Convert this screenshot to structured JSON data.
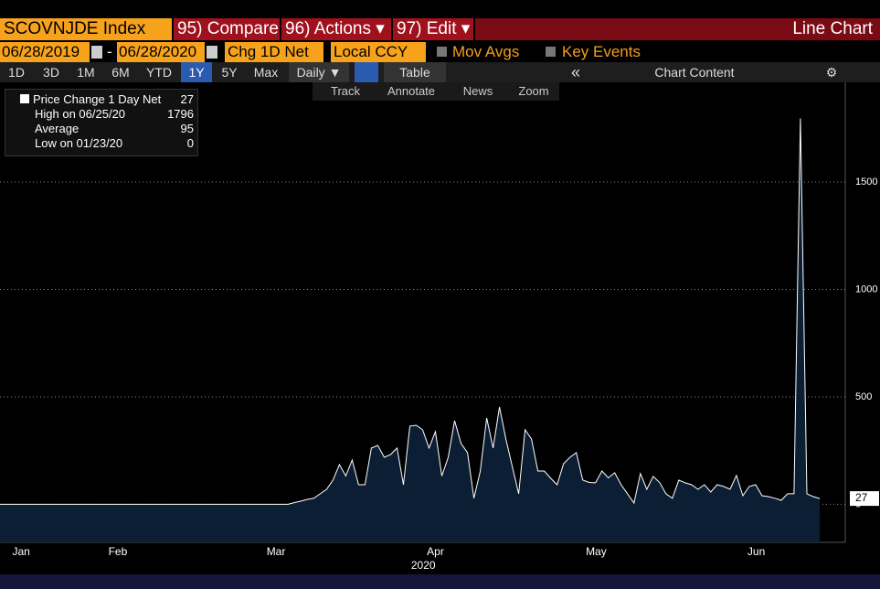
{
  "toolbar": {
    "security": "SCOVNJDE Index",
    "buttons": [
      "95) Compare",
      "96) Actions ▾",
      "97) Edit ▾"
    ],
    "view": "Line Chart"
  },
  "controls": {
    "start": "06/28/2019",
    "separator": "-",
    "end": "06/28/2020",
    "field": "Chg 1D Net",
    "currency": "Local CCY",
    "checks": [
      "Mov Avgs",
      "Key Events"
    ]
  },
  "ranges": {
    "items": [
      "1D",
      "3D",
      "1M",
      "6M",
      "YTD",
      "1Y",
      "5Y",
      "Max"
    ],
    "selected": 5,
    "period": "Daily ▼",
    "table": "Table",
    "collapse": "«",
    "content": "Chart Content"
  },
  "tools": [
    "Track",
    "Annotate",
    "News",
    "Zoom"
  ],
  "chart_data": {
    "type": "area",
    "series_name": "Price Change 1 Day Net",
    "color": "#ffffff",
    "fill": "#0c1e33",
    "values": [
      0,
      0,
      0,
      0,
      0,
      0,
      0,
      0,
      0,
      0,
      0,
      0,
      0,
      0,
      0,
      0,
      0,
      0,
      0,
      0,
      0,
      0,
      0,
      0,
      0,
      0,
      0,
      0,
      0,
      0,
      0,
      0,
      0,
      0,
      0,
      0,
      0,
      0,
      0,
      0,
      0,
      0,
      0,
      0,
      0,
      0,
      8,
      15,
      23,
      28,
      49,
      70,
      113,
      185,
      132,
      206,
      91,
      91,
      262,
      274,
      219,
      232,
      262,
      91,
      364,
      368,
      347,
      262,
      338,
      132,
      219,
      389,
      283,
      240,
      28,
      155,
      402,
      262,
      453,
      304,
      176,
      49,
      347,
      304,
      155,
      155,
      121,
      91,
      189,
      219,
      240,
      113,
      102,
      100,
      155,
      123,
      147,
      91,
      49,
      6,
      143,
      70,
      130,
      102,
      49,
      28,
      113,
      100,
      91,
      70,
      91,
      57,
      91,
      83,
      70,
      134,
      40,
      83,
      91,
      40,
      36,
      28,
      19,
      49,
      49,
      1796,
      49,
      36,
      27
    ],
    "xlim": [
      0,
      132
    ],
    "ylim": [
      -177,
      1964
    ],
    "yticks": [
      0,
      500,
      1000,
      1500
    ],
    "grid": true,
    "xticks": [
      {
        "value": 3.3,
        "label": "Jan"
      },
      {
        "value": 18.4,
        "label": "Feb"
      },
      {
        "value": 43.1,
        "label": "Mar"
      },
      {
        "value": 68,
        "label": "Apr"
      },
      {
        "value": 93.1,
        "label": "May"
      },
      {
        "value": 118.1,
        "label": "Jun"
      }
    ],
    "year": {
      "value": 66.1,
      "label": "2020"
    },
    "legend": {
      "high": "High on 06/25/20",
      "average": "Average",
      "average_value": 95,
      "low": "Low on 01/23/20"
    }
  }
}
